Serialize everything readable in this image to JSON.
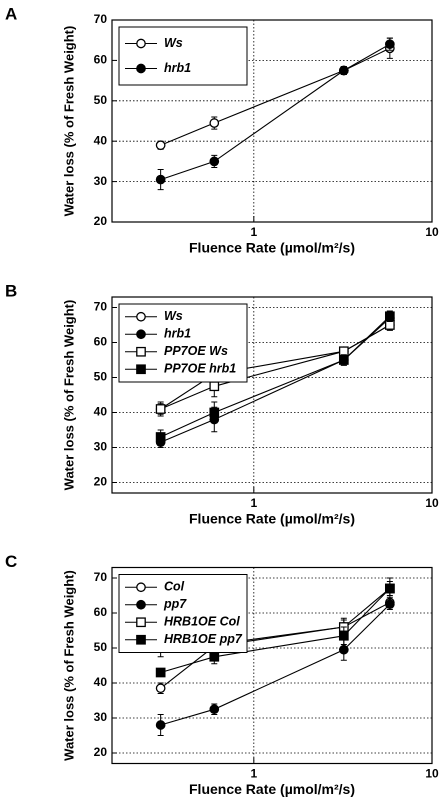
{
  "chart_data": [
    {
      "type": "line",
      "panel_label": "A",
      "xlabel": "Fluence Rate (µmol/m²/s)",
      "ylabel": "Water loss (% of Fresh Weight)",
      "x": [
        0.3,
        0.6,
        3.2,
        5.8
      ],
      "xscale": "log",
      "xlim": [
        0.16,
        10
      ],
      "xticks": [
        1,
        10
      ],
      "ylim": [
        20,
        70
      ],
      "yticks": [
        20,
        30,
        40,
        50,
        60,
        70
      ],
      "grid": true,
      "series": [
        {
          "name": "Ws",
          "color": "#000000",
          "marker": "circle-open",
          "values": [
            39,
            44.5,
            57.5,
            63
          ],
          "errors": [
            1,
            1.5,
            1,
            2.5
          ]
        },
        {
          "name": "hrb1",
          "color": "#000000",
          "marker": "circle-filled",
          "values": [
            30.5,
            35,
            57.5,
            64
          ],
          "errors": [
            2.5,
            1.5,
            1,
            1.5
          ]
        }
      ]
    },
    {
      "type": "line",
      "panel_label": "B",
      "xlabel": "Fluence Rate (µmol/m²/s)",
      "ylabel": "Water loss (% of Fresh Weight)",
      "x": [
        0.3,
        0.6,
        3.2,
        5.8
      ],
      "xscale": "log",
      "xlim": [
        0.16,
        10
      ],
      "xticks": [
        1,
        10
      ],
      "ylim": [
        17,
        73
      ],
      "yticks": [
        20,
        30,
        40,
        50,
        60,
        70
      ],
      "grid": true,
      "series": [
        {
          "name": "Ws",
          "color": "#000000",
          "marker": "circle-open",
          "values": [
            41,
            51,
            57.5,
            65
          ],
          "errors": [
            1.5,
            1,
            1,
            1.5
          ]
        },
        {
          "name": "hrb1",
          "color": "#000000",
          "marker": "circle-filled",
          "values": [
            31.5,
            38,
            55,
            67
          ],
          "errors": [
            1.5,
            3.5,
            1.5,
            1.5
          ]
        },
        {
          "name": "PP7OE Ws",
          "color": "#000000",
          "marker": "square-open",
          "values": [
            41,
            47.5,
            57.5,
            65
          ],
          "errors": [
            2,
            3,
            1,
            1.5
          ]
        },
        {
          "name": "PP7OE hrb1",
          "color": "#000000",
          "marker": "square-filled",
          "values": [
            33,
            40,
            55,
            67.5
          ],
          "errors": [
            2,
            3,
            1.5,
            1.5
          ]
        }
      ]
    },
    {
      "type": "line",
      "panel_label": "C",
      "xlabel": "Fluence Rate (µmol/m²/s)",
      "ylabel": "Water loss (% of Fresh Weight)",
      "x": [
        0.3,
        0.6,
        3.2,
        5.8
      ],
      "xscale": "log",
      "xlim": [
        0.16,
        10
      ],
      "xticks": [
        1,
        10
      ],
      "ylim": [
        17,
        73
      ],
      "yticks": [
        20,
        30,
        40,
        50,
        60,
        70
      ],
      "grid": true,
      "series": [
        {
          "name": "Col",
          "color": "#000000",
          "marker": "circle-open",
          "values": [
            38.5,
            50.5,
            56,
            63
          ],
          "errors": [
            1.5,
            1.5,
            2.5,
            1.5
          ]
        },
        {
          "name": "pp7",
          "color": "#000000",
          "marker": "circle-filled",
          "values": [
            28,
            32.5,
            49.5,
            62.5
          ],
          "errors": [
            3,
            1.5,
            3,
            1.5
          ]
        },
        {
          "name": "HRB1OE Col",
          "color": "#000000",
          "marker": "square-open",
          "values": [
            50,
            51,
            56,
            67
          ],
          "errors": [
            2.5,
            1,
            2,
            3
          ]
        },
        {
          "name": "HRB1OE pp7",
          "color": "#000000",
          "marker": "square-filled",
          "values": [
            43,
            47.5,
            53.5,
            67
          ],
          "errors": [
            1,
            2,
            2.5,
            2
          ]
        }
      ]
    }
  ]
}
